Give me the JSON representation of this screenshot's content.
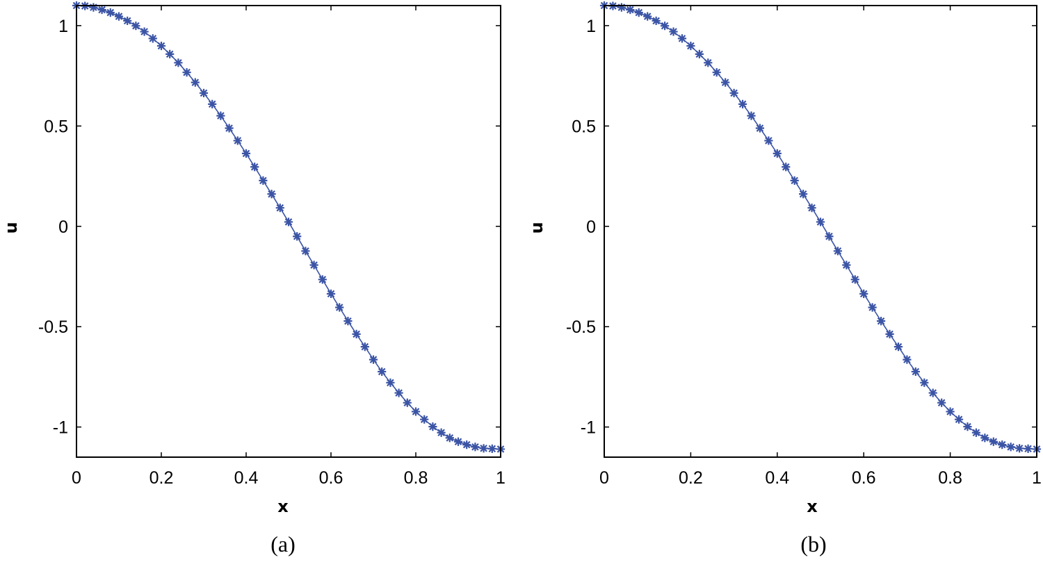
{
  "chart_data": [
    {
      "type": "line",
      "caption": "(a)",
      "xlabel": "x",
      "ylabel": "u",
      "xlim": [
        0,
        1
      ],
      "ylim": [
        -1.15,
        1.1
      ],
      "xticks": [
        "0",
        "0.2",
        "0.4",
        "0.6",
        "0.8",
        "1"
      ],
      "yticks": [
        "1",
        "0.5",
        "0",
        "-0.5",
        "-1"
      ],
      "grid": false,
      "marker": "asterisk",
      "color": "#3b54a5",
      "series": [
        {
          "x": [
            0,
            0.02,
            0.04,
            0.06,
            0.08,
            0.1,
            0.12,
            0.14,
            0.16,
            0.18,
            0.2,
            0.22,
            0.24,
            0.26,
            0.28,
            0.3,
            0.32,
            0.34,
            0.36,
            0.38,
            0.4,
            0.42,
            0.44,
            0.46,
            0.48,
            0.5,
            0.52,
            0.54,
            0.56,
            0.58,
            0.6,
            0.62,
            0.64,
            0.66,
            0.68,
            0.7,
            0.72,
            0.74,
            0.76,
            0.78,
            0.8,
            0.82,
            0.84,
            0.86,
            0.88,
            0.9,
            0.92,
            0.94,
            0.96,
            0.98,
            1
          ],
          "y": [
            1.1,
            1.098,
            1.091,
            1.079,
            1.065,
            1.046,
            1.024,
            0.999,
            0.97,
            0.936,
            0.899,
            0.858,
            0.815,
            0.767,
            0.717,
            0.664,
            0.609,
            0.551,
            0.489,
            0.427,
            0.363,
            0.296,
            0.228,
            0.161,
            0.092,
            0.022,
            -0.05,
            -0.123,
            -0.193,
            -0.265,
            -0.336,
            -0.404,
            -0.472,
            -0.537,
            -0.6,
            -0.664,
            -0.724,
            -0.779,
            -0.83,
            -0.879,
            -0.923,
            -0.962,
            -0.998,
            -1.028,
            -1.054,
            -1.073,
            -1.088,
            -1.099,
            -1.106,
            -1.108,
            -1.11
          ]
        }
      ]
    },
    {
      "type": "line",
      "caption": "(b)",
      "xlabel": "x",
      "ylabel": "u",
      "xlim": [
        0,
        1
      ],
      "ylim": [
        -1.15,
        1.1
      ],
      "xticks": [
        "0",
        "0.2",
        "0.4",
        "0.6",
        "0.8",
        "1"
      ],
      "yticks": [
        "1",
        "0.5",
        "0",
        "-0.5",
        "-1"
      ],
      "grid": false,
      "marker": "asterisk",
      "color": "#3b54a5",
      "series": [
        {
          "x": [
            0,
            0.02,
            0.04,
            0.06,
            0.08,
            0.1,
            0.12,
            0.14,
            0.16,
            0.18,
            0.2,
            0.22,
            0.24,
            0.26,
            0.28,
            0.3,
            0.32,
            0.34,
            0.36,
            0.38,
            0.4,
            0.42,
            0.44,
            0.46,
            0.48,
            0.5,
            0.52,
            0.54,
            0.56,
            0.58,
            0.6,
            0.62,
            0.64,
            0.66,
            0.68,
            0.7,
            0.72,
            0.74,
            0.76,
            0.78,
            0.8,
            0.82,
            0.84,
            0.86,
            0.88,
            0.9,
            0.92,
            0.94,
            0.96,
            0.98,
            1
          ],
          "y": [
            1.1,
            1.098,
            1.091,
            1.079,
            1.065,
            1.046,
            1.024,
            0.999,
            0.97,
            0.936,
            0.899,
            0.858,
            0.815,
            0.767,
            0.717,
            0.664,
            0.609,
            0.551,
            0.489,
            0.427,
            0.363,
            0.296,
            0.228,
            0.161,
            0.092,
            0.022,
            -0.05,
            -0.123,
            -0.193,
            -0.265,
            -0.336,
            -0.404,
            -0.472,
            -0.537,
            -0.6,
            -0.664,
            -0.724,
            -0.779,
            -0.83,
            -0.879,
            -0.923,
            -0.962,
            -0.998,
            -1.028,
            -1.054,
            -1.073,
            -1.088,
            -1.099,
            -1.106,
            -1.108,
            -1.11
          ]
        }
      ]
    }
  ]
}
